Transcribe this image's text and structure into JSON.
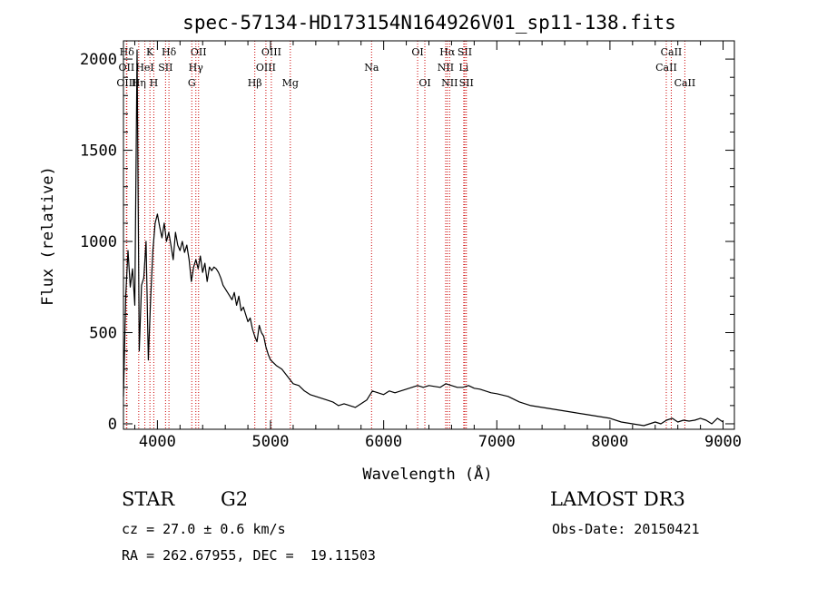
{
  "chart_data": {
    "type": "line",
    "title": "spec-57134-HD173154N164926V01_sp11-138.fits",
    "xlabel": "Wavelength (Å)",
    "ylabel": "Flux (relative)",
    "xlim": [
      3700,
      9100
    ],
    "ylim": [
      -30,
      2100
    ],
    "x_ticks": [
      "4000",
      "5000",
      "6000",
      "7000",
      "8000",
      "9000"
    ],
    "y_ticks": [
      "0",
      "500",
      "1000",
      "1500",
      "2000"
    ],
    "grid": false,
    "series": [
      {
        "x": [
          3700,
          3720,
          3740,
          3760,
          3780,
          3800,
          3820,
          3840,
          3860,
          3880,
          3900,
          3920,
          3940,
          3960,
          3980,
          4000,
          4020,
          4040,
          4060,
          4080,
          4100,
          4120,
          4140,
          4160,
          4180,
          4200,
          4220,
          4240,
          4260,
          4280,
          4300,
          4320,
          4340,
          4360,
          4380,
          4400,
          4420,
          4440,
          4460,
          4480,
          4500,
          4520,
          4540,
          4560,
          4580,
          4600,
          4620,
          4640,
          4660,
          4680,
          4700,
          4720,
          4740,
          4760,
          4780,
          4800,
          4820,
          4840,
          4860,
          4880,
          4900,
          4920,
          4940,
          4960,
          4980,
          5000,
          5050,
          5100,
          5150,
          5200,
          5250,
          5300,
          5350,
          5400,
          5450,
          5500,
          5550,
          5600,
          5650,
          5700,
          5750,
          5800,
          5850,
          5900,
          5950,
          6000,
          6050,
          6100,
          6150,
          6200,
          6250,
          6300,
          6350,
          6400,
          6450,
          6500,
          6550,
          6600,
          6650,
          6700,
          6750,
          6800,
          6850,
          6900,
          6950,
          7000,
          7100,
          7200,
          7300,
          7400,
          7500,
          7600,
          7700,
          7800,
          7900,
          8000,
          8100,
          8200,
          8300,
          8400,
          8450,
          8500,
          8550,
          8600,
          8650,
          8700,
          8750,
          8800,
          8850,
          8900,
          8950,
          9000
        ],
        "y": [
          150,
          700,
          950,
          750,
          850,
          650,
          2050,
          400,
          760,
          800,
          1000,
          350,
          680,
          950,
          1100,
          1150,
          1080,
          1020,
          1100,
          1000,
          1050,
          980,
          900,
          1050,
          980,
          950,
          1000,
          940,
          980,
          900,
          780,
          860,
          900,
          850,
          920,
          830,
          880,
          780,
          860,
          840,
          860,
          850,
          830,
          800,
          760,
          740,
          720,
          700,
          680,
          720,
          650,
          700,
          620,
          640,
          600,
          560,
          580,
          520,
          480,
          450,
          540,
          500,
          480,
          420,
          380,
          350,
          320,
          300,
          260,
          220,
          210,
          180,
          160,
          150,
          140,
          130,
          120,
          100,
          110,
          100,
          90,
          110,
          130,
          180,
          170,
          160,
          180,
          170,
          180,
          190,
          200,
          210,
          200,
          210,
          205,
          200,
          220,
          210,
          200,
          200,
          210,
          195,
          190,
          180,
          170,
          165,
          150,
          120,
          100,
          90,
          80,
          70,
          60,
          50,
          40,
          30,
          10,
          0,
          -10,
          10,
          0,
          20,
          30,
          10,
          20,
          15,
          20,
          30,
          20,
          0,
          30,
          10
        ]
      }
    ],
    "spectral_lines": [
      {
        "name": "Hδ",
        "x": 3730,
        "row": 0
      },
      {
        "name": "K",
        "x": 3934,
        "row": 0
      },
      {
        "name": "Hδ",
        "x": 4102,
        "row": 0
      },
      {
        "name": "OII",
        "x": 4364,
        "row": 0
      },
      {
        "name": "OIII",
        "x": 5007,
        "row": 0
      },
      {
        "name": "OI",
        "x": 6300,
        "row": 0
      },
      {
        "name": "Hα",
        "x": 6563,
        "row": 0
      },
      {
        "name": "SII",
        "x": 6717,
        "row": 0
      },
      {
        "name": "CaII",
        "x": 8542,
        "row": 0
      },
      {
        "name": "OII",
        "x": 3727,
        "row": 1
      },
      {
        "name": "HeI",
        "x": 3889,
        "row": 1
      },
      {
        "name": "SII",
        "x": 4072,
        "row": 1
      },
      {
        "name": "Hγ",
        "x": 4340,
        "row": 1
      },
      {
        "name": "OIII",
        "x": 4959,
        "row": 1
      },
      {
        "name": "Na",
        "x": 5893,
        "row": 1
      },
      {
        "name": "NII",
        "x": 6548,
        "row": 1
      },
      {
        "name": "Li",
        "x": 6708,
        "row": 1
      },
      {
        "name": "CaII",
        "x": 8498,
        "row": 1
      },
      {
        "name": "OIII",
        "x": 3727,
        "row": 2
      },
      {
        "name": "Hη",
        "x": 3835,
        "row": 2
      },
      {
        "name": "H",
        "x": 3968,
        "row": 2
      },
      {
        "name": "G",
        "x": 4304,
        "row": 2
      },
      {
        "name": "Hβ",
        "x": 4861,
        "row": 2
      },
      {
        "name": "Mg",
        "x": 5175,
        "row": 2
      },
      {
        "name": "OI",
        "x": 6364,
        "row": 2
      },
      {
        "name": "NII",
        "x": 6583,
        "row": 2
      },
      {
        "name": "SII",
        "x": 6731,
        "row": 2
      },
      {
        "name": "CaII",
        "x": 8662,
        "row": 2
      }
    ],
    "line_marker_color": "#cc0000"
  },
  "info": {
    "object_class": "STAR",
    "subclass": "G2",
    "survey": "LAMOST DR3",
    "redshift": "cz = 27.0 ± 0.6 km/s",
    "obs_date": "Obs-Date: 20150421",
    "coords": "RA = 262.67955, DEC =  19.11503"
  }
}
